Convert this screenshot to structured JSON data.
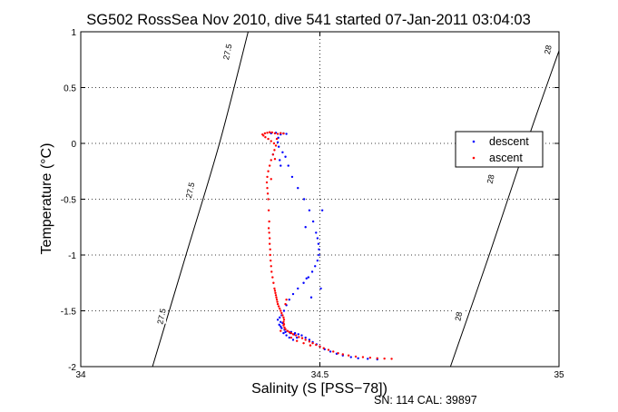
{
  "chart_data": {
    "type": "scatter",
    "title": "SG502 RossSea Nov 2010, dive 541 started 07-Jan-2011 03:04:03",
    "xlabel": "Salinity (S [PSS−78])",
    "ylabel": "Temperature (°C)",
    "xlim": [
      34,
      35
    ],
    "ylim": [
      -2,
      1
    ],
    "x_ticks": [
      "34",
      "34.5",
      "35"
    ],
    "y_ticks": [
      "1",
      "0.5",
      "0",
      "-0.5",
      "-1",
      "-1.5",
      "-2"
    ],
    "grid": true,
    "legend_position": "upper-right",
    "footnote": "SN: 114  CAL: 39897",
    "density_contours": [
      {
        "label": "27.5",
        "points": [
          [
            34.15,
            -2.0
          ],
          [
            34.22,
            -1.0
          ],
          [
            34.29,
            0.0
          ],
          [
            34.35,
            1.0
          ]
        ],
        "label_points": [
          [
            34.169,
            -1.55
          ],
          [
            34.229,
            -0.42
          ],
          [
            34.307,
            0.82
          ]
        ]
      },
      {
        "label": "28",
        "points": [
          [
            34.773,
            -2.0
          ],
          [
            34.854,
            -1.0
          ],
          [
            34.932,
            0.0
          ],
          [
            35.0,
            0.83
          ]
        ],
        "label_points": [
          [
            34.79,
            -1.55
          ],
          [
            34.857,
            -0.32
          ],
          [
            34.977,
            0.84
          ]
        ]
      }
    ],
    "series": [
      {
        "name": "descent",
        "color": "#0000ff",
        "points": [
          [
            34.62,
            -1.935
          ],
          [
            34.6,
            -1.93
          ],
          [
            34.58,
            -1.925
          ],
          [
            34.565,
            -1.915
          ],
          [
            34.548,
            -1.9
          ],
          [
            34.535,
            -1.885
          ],
          [
            34.522,
            -1.865
          ],
          [
            34.51,
            -1.845
          ],
          [
            34.5,
            -1.82
          ],
          [
            34.493,
            -1.8
          ],
          [
            34.485,
            -1.78
          ],
          [
            34.478,
            -1.76
          ],
          [
            34.47,
            -1.74
          ],
          [
            34.462,
            -1.72
          ],
          [
            34.455,
            -1.71
          ],
          [
            34.448,
            -1.7
          ],
          [
            34.44,
            -1.69
          ],
          [
            34.432,
            -1.68
          ],
          [
            34.426,
            -1.67
          ],
          [
            34.42,
            -1.655
          ],
          [
            34.418,
            -1.64
          ],
          [
            34.415,
            -1.625
          ],
          [
            34.422,
            -1.61
          ],
          [
            34.418,
            -1.6
          ],
          [
            34.424,
            -1.7
          ],
          [
            34.43,
            -1.72
          ],
          [
            34.436,
            -1.74
          ],
          [
            34.444,
            -1.76
          ],
          [
            34.452,
            -1.74
          ],
          [
            34.446,
            -1.712
          ],
          [
            34.438,
            -1.7
          ],
          [
            34.428,
            -1.69
          ],
          [
            34.412,
            -1.58
          ],
          [
            34.416,
            -1.56
          ],
          [
            34.42,
            -1.54
          ],
          [
            34.425,
            -1.5
          ],
          [
            34.43,
            -1.45
          ],
          [
            34.436,
            -1.4
          ],
          [
            34.444,
            -1.35
          ],
          [
            34.454,
            -1.3
          ],
          [
            34.466,
            -1.25
          ],
          [
            34.476,
            -1.2
          ],
          [
            34.484,
            -1.15
          ],
          [
            34.49,
            -1.1
          ],
          [
            34.495,
            -1.05
          ],
          [
            34.498,
            -1.0
          ],
          [
            34.498,
            -0.95
          ],
          [
            34.497,
            -0.9
          ],
          [
            34.495,
            -0.85
          ],
          [
            34.492,
            -0.8
          ],
          [
            34.486,
            -0.7
          ],
          [
            34.478,
            -0.6
          ],
          [
            34.467,
            -0.5
          ],
          [
            34.454,
            -0.4
          ],
          [
            34.442,
            -0.3
          ],
          [
            34.434,
            -0.2
          ],
          [
            34.428,
            -0.12
          ],
          [
            34.422,
            -0.08
          ],
          [
            34.416,
            -0.15
          ],
          [
            34.414,
            -0.03
          ],
          [
            34.412,
            0.01
          ],
          [
            34.413,
            0.05
          ],
          [
            34.418,
            0.08
          ],
          [
            34.424,
            0.09
          ],
          [
            34.43,
            0.085
          ],
          [
            34.408,
            0.095
          ],
          [
            34.398,
            0.09
          ],
          [
            34.402,
            -0.1
          ],
          [
            34.418,
            -0.2
          ],
          [
            34.47,
            -0.75
          ],
          [
            34.482,
            -1.38
          ],
          [
            34.502,
            -1.3
          ],
          [
            34.505,
            -0.6
          ],
          [
            34.472,
            -1.21
          ]
        ]
      },
      {
        "name": "ascent",
        "color": "#ff0000",
        "points": [
          [
            34.65,
            -1.93
          ],
          [
            34.635,
            -1.928
          ],
          [
            34.62,
            -1.925
          ],
          [
            34.605,
            -1.92
          ],
          [
            34.59,
            -1.915
          ],
          [
            34.575,
            -1.91
          ],
          [
            34.56,
            -1.9
          ],
          [
            34.548,
            -1.89
          ],
          [
            34.538,
            -1.88
          ],
          [
            34.528,
            -1.865
          ],
          [
            34.518,
            -1.85
          ],
          [
            34.508,
            -1.835
          ],
          [
            34.5,
            -1.82
          ],
          [
            34.492,
            -1.805
          ],
          [
            34.485,
            -1.79
          ],
          [
            34.478,
            -1.775
          ],
          [
            34.47,
            -1.76
          ],
          [
            34.463,
            -1.745
          ],
          [
            34.456,
            -1.735
          ],
          [
            34.45,
            -1.72
          ],
          [
            34.444,
            -1.71
          ],
          [
            34.44,
            -1.7
          ],
          [
            34.436,
            -1.69
          ],
          [
            34.432,
            -1.68
          ],
          [
            34.428,
            -1.665
          ],
          [
            34.426,
            -1.65
          ],
          [
            34.424,
            -1.63
          ],
          [
            34.424,
            -1.6
          ],
          [
            34.425,
            -1.58
          ],
          [
            34.424,
            -1.56
          ],
          [
            34.422,
            -1.54
          ],
          [
            34.42,
            -1.52
          ],
          [
            34.418,
            -1.5
          ],
          [
            34.416,
            -1.48
          ],
          [
            34.414,
            -1.46
          ],
          [
            34.412,
            -1.44
          ],
          [
            34.411,
            -1.42
          ],
          [
            34.41,
            -1.4
          ],
          [
            34.409,
            -1.38
          ],
          [
            34.408,
            -1.36
          ],
          [
            34.407,
            -1.34
          ],
          [
            34.406,
            -1.32
          ],
          [
            34.405,
            -1.3
          ],
          [
            34.403,
            -1.25
          ],
          [
            34.401,
            -1.2
          ],
          [
            34.399,
            -1.15
          ],
          [
            34.398,
            -1.1
          ],
          [
            34.397,
            -1.05
          ],
          [
            34.396,
            -1.0
          ],
          [
            34.396,
            -0.95
          ],
          [
            34.395,
            -0.9
          ],
          [
            34.395,
            -0.85
          ],
          [
            34.394,
            -0.8
          ],
          [
            34.394,
            -0.7
          ],
          [
            34.393,
            -0.6
          ],
          [
            34.392,
            -0.5
          ],
          [
            34.391,
            -0.45
          ],
          [
            34.39,
            -0.4
          ],
          [
            34.389,
            -0.35
          ],
          [
            34.39,
            -0.3
          ],
          [
            34.392,
            -0.25
          ],
          [
            34.395,
            -0.2
          ],
          [
            34.398,
            -0.15
          ],
          [
            34.402,
            -0.1
          ],
          [
            34.405,
            -0.06
          ],
          [
            34.408,
            -0.02
          ],
          [
            34.404,
            0.0
          ],
          [
            34.398,
            0.02
          ],
          [
            34.392,
            0.04
          ],
          [
            34.386,
            0.055
          ],
          [
            34.382,
            0.07
          ],
          [
            34.38,
            0.08
          ],
          [
            34.385,
            0.09
          ],
          [
            34.39,
            0.095
          ],
          [
            34.395,
            0.1
          ],
          [
            34.4,
            0.098
          ],
          [
            34.406,
            0.09
          ],
          [
            34.412,
            0.085
          ],
          [
            34.418,
            0.092
          ],
          [
            34.424,
            0.088
          ],
          [
            34.41,
            0.04
          ],
          [
            34.406,
            -0.14
          ],
          [
            34.398,
            -0.32
          ],
          [
            34.393,
            -0.76
          ],
          [
            34.44,
            -1.74
          ],
          [
            34.452,
            -1.77
          ],
          [
            34.466,
            -1.79
          ],
          [
            34.48,
            -1.81
          ],
          [
            34.428,
            -1.44
          ],
          [
            34.43,
            -1.4
          ],
          [
            34.425,
            -1.62
          ],
          [
            34.418,
            -1.68
          ]
        ]
      }
    ]
  }
}
